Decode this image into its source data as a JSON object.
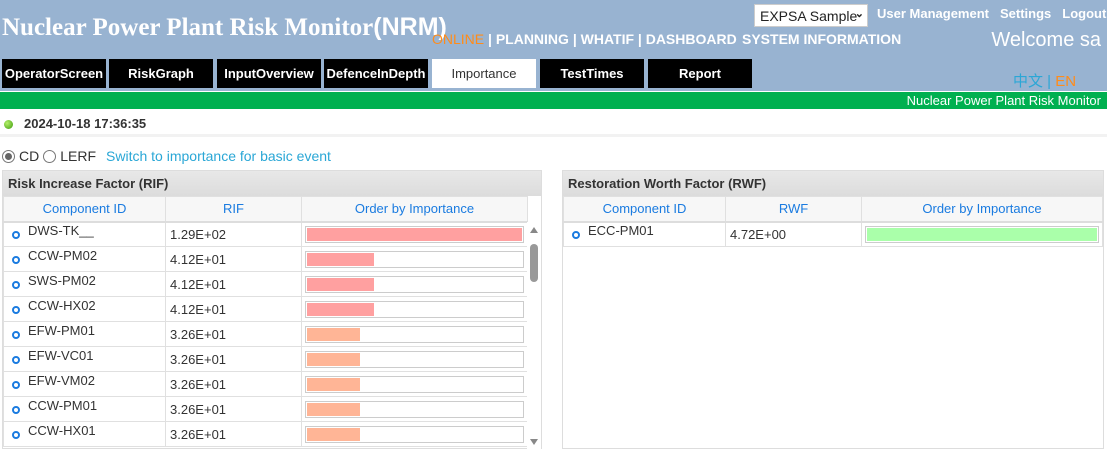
{
  "header": {
    "title": "Nuclear Power Plant Risk Monitor",
    "title_suffix": "(NRM)",
    "mode_online": "ONLINE",
    "nav_rest": " | PLANNING | WHATIF | DASHBOARD",
    "system_info": "SYSTEM INFORMATION",
    "model_select": "EXPSA Sample",
    "links": [
      "User Management",
      "Settings",
      "Logout"
    ],
    "welcome": "Welcome sa",
    "lang_zh": "中文",
    "lang_sep": " | ",
    "lang_en": "EN"
  },
  "tabs": [
    {
      "label": "OperatorScreen",
      "active": false
    },
    {
      "label": "RiskGraph",
      "active": false
    },
    {
      "label": "InputOverview",
      "active": false
    },
    {
      "label": "DefenceInDepth",
      "active": false
    },
    {
      "label": "Importance",
      "active": true
    },
    {
      "label": "TestTimes",
      "active": false
    },
    {
      "label": "Report",
      "active": false
    }
  ],
  "banner": "Nuclear Power Plant Risk Monitor",
  "timestamp": "2024-10-18 17:36:35",
  "options": {
    "cd": "CD",
    "lerf": "LERF",
    "selected": "CD",
    "switch_link": "Switch to importance for basic event"
  },
  "colors": {
    "header": "#98b3d1",
    "banner": "#00b050",
    "rif_high": "#ffa0a0",
    "rif_mid": "#ffb596",
    "rwf": "#aaffaa"
  },
  "rif": {
    "title": "Risk Increase Factor (RIF)",
    "columns": [
      "Component ID",
      "RIF",
      "Order by Importance"
    ],
    "rows": [
      {
        "id": "DWS-TK__",
        "value": "1.29E+02",
        "color": "#ffa0a0"
      },
      {
        "id": "CCW-PM02",
        "value": "4.12E+01",
        "color": "#ffa0a0"
      },
      {
        "id": "SWS-PM02",
        "value": "4.12E+01",
        "color": "#ffa0a0"
      },
      {
        "id": "CCW-HX02",
        "value": "4.12E+01",
        "color": "#ffa0a0"
      },
      {
        "id": "EFW-PM01",
        "value": "3.26E+01",
        "color": "#ffb596"
      },
      {
        "id": "EFW-VC01",
        "value": "3.26E+01",
        "color": "#ffb596"
      },
      {
        "id": "EFW-VM02",
        "value": "3.26E+01",
        "color": "#ffb596"
      },
      {
        "id": "CCW-PM01",
        "value": "3.26E+01",
        "color": "#ffb596"
      },
      {
        "id": "CCW-HX01",
        "value": "3.26E+01",
        "color": "#ffb596"
      }
    ]
  },
  "rwf": {
    "title": "Restoration Worth Factor (RWF)",
    "columns": [
      "Component ID",
      "RWF",
      "Order by Importance"
    ],
    "rows": [
      {
        "id": "ECC-PM01",
        "value": "4.72E+00",
        "color": "#aaffaa"
      }
    ]
  }
}
